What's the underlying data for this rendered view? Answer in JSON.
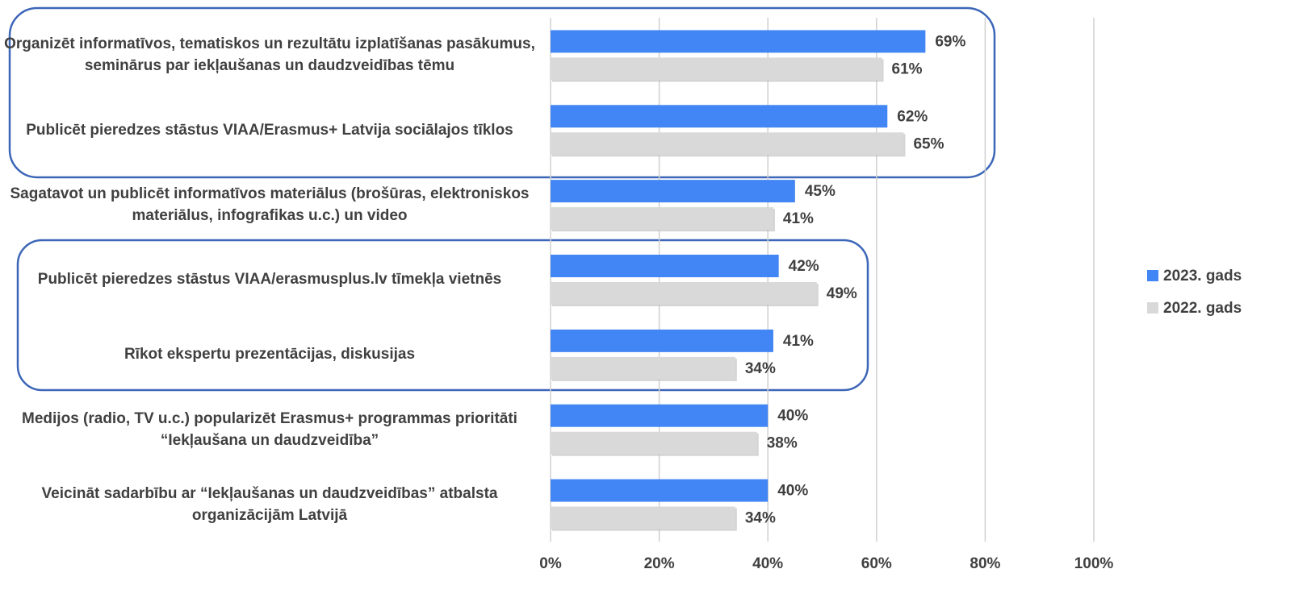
{
  "chart_data": {
    "type": "bar",
    "orientation": "horizontal",
    "categories": [
      "Organizēt informatīvos, tematiskos un rezultātu izplatīšanas pasākumus, seminārus par iekļaušanas un daudzveidības tēmu",
      "Publicēt pieredzes stāstus VIAA/Erasmus+ Latvija sociālajos tīklos",
      "Sagatavot un publicēt informatīvos materiālus (brošūras, elektroniskos materiālus, infografikas  u.c.) un video",
      "Publicēt pieredzes stāstus VIAA/erasmusplus.lv tīmekļa vietnēs",
      "Rīkot ekspertu prezentācijas, diskusijas",
      "Medijos (radio, TV u.c.) popularizēt Erasmus+ programmas prioritāti  “Iekļaušana un daudzveidība”",
      "Veicināt sadarbību ar “Iekļaušanas un daudzveidības” atbalsta organizācijām Latvijā"
    ],
    "series": [
      {
        "name": "2023. gads",
        "color": "#4285f4",
        "values": [
          69,
          62,
          45,
          42,
          41,
          40,
          40
        ],
        "value_labels": [
          "69%",
          "62%",
          "45%",
          "42%",
          "41%",
          "40%",
          "40%"
        ]
      },
      {
        "name": "2022. gads",
        "color": "#d9d9d9",
        "values": [
          61,
          65,
          41,
          49,
          34,
          38,
          34
        ],
        "value_labels": [
          "61%",
          "65%",
          "41%",
          "49%",
          "34%",
          "38%",
          "34%"
        ]
      }
    ],
    "xlim": [
      0,
      100
    ],
    "xticks": [
      {
        "value": 0,
        "label": "0%"
      },
      {
        "value": 20,
        "label": "20%"
      },
      {
        "value": 40,
        "label": "40%"
      },
      {
        "value": 60,
        "label": "60%"
      },
      {
        "value": 80,
        "label": "80%"
      },
      {
        "value": 100,
        "label": "100%"
      }
    ],
    "grid": true,
    "legend": "right"
  }
}
